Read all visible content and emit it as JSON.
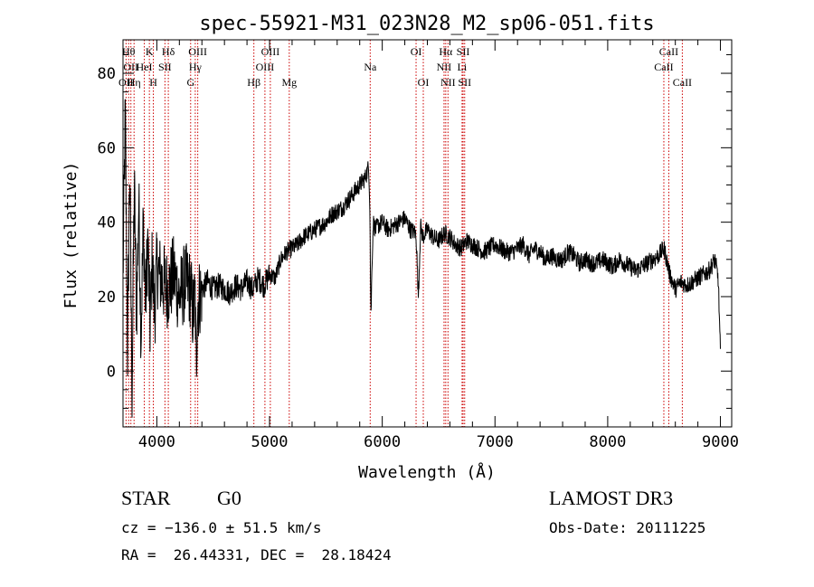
{
  "chart_data": {
    "type": "line",
    "title": "spec-55921-M31_023N28_M2_sp06-051.fits",
    "xlabel": "Wavelength (Å)",
    "ylabel": "Flux (relative)",
    "xlim": [
      3700,
      9100
    ],
    "ylim": [
      -15,
      89
    ],
    "xticks": [
      {
        "value": 4000,
        "label": "4000"
      },
      {
        "value": 5000,
        "label": "5000"
      },
      {
        "value": 6000,
        "label": "6000"
      },
      {
        "value": 7000,
        "label": "7000"
      },
      {
        "value": 8000,
        "label": "8000"
      },
      {
        "value": 9000,
        "label": "9000"
      }
    ],
    "yticks": [
      {
        "value": 0,
        "label": "0"
      },
      {
        "value": 20,
        "label": "20"
      },
      {
        "value": 40,
        "label": "40"
      },
      {
        "value": 60,
        "label": "60"
      },
      {
        "value": 80,
        "label": "80"
      }
    ],
    "lines": [
      {
        "wavelength": 3727,
        "label": "OII",
        "row": 2
      },
      {
        "wavelength": 3750,
        "label": "Hθ",
        "row": 0
      },
      {
        "wavelength": 3770,
        "label": "OII",
        "row": 1
      },
      {
        "wavelength": 3798,
        "label": "Hη",
        "row": 2
      },
      {
        "wavelength": 3889,
        "label": "HeI",
        "row": 1
      },
      {
        "wavelength": 3934,
        "label": "K",
        "row": 0
      },
      {
        "wavelength": 3969,
        "label": "H",
        "row": 2
      },
      {
        "wavelength": 4072,
        "label": "SII",
        "row": 1
      },
      {
        "wavelength": 4102,
        "label": "Hδ",
        "row": 0
      },
      {
        "wavelength": 4300,
        "label": "G",
        "row": 2
      },
      {
        "wavelength": 4341,
        "label": "Hγ",
        "row": 1
      },
      {
        "wavelength": 4363,
        "label": "OIII",
        "row": 0
      },
      {
        "wavelength": 4861,
        "label": "Hβ",
        "row": 2
      },
      {
        "wavelength": 4959,
        "label": "OIII",
        "row": 1
      },
      {
        "wavelength": 5007,
        "label": "OIII",
        "row": 0
      },
      {
        "wavelength": 5175,
        "label": "Mg",
        "row": 2
      },
      {
        "wavelength": 5893,
        "label": "Na",
        "row": 1
      },
      {
        "wavelength": 6300,
        "label": "OI",
        "row": 0
      },
      {
        "wavelength": 6364,
        "label": "OI",
        "row": 2
      },
      {
        "wavelength": 6548,
        "label": "NII",
        "row": 1
      },
      {
        "wavelength": 6563,
        "label": "Hα",
        "row": 0
      },
      {
        "wavelength": 6583,
        "label": "NII",
        "row": 2
      },
      {
        "wavelength": 6708,
        "label": "Li",
        "row": 1
      },
      {
        "wavelength": 6717,
        "label": "SII",
        "row": 0
      },
      {
        "wavelength": 6731,
        "label": "SII",
        "row": 2
      },
      {
        "wavelength": 8498,
        "label": "CaII",
        "row": 1
      },
      {
        "wavelength": 8542,
        "label": "CaII",
        "row": 0
      },
      {
        "wavelength": 8662,
        "label": "CaII",
        "row": 2
      }
    ],
    "spectrum": {
      "wavelength": [
        3700,
        3720,
        3740,
        3760,
        3780,
        3800,
        3820,
        3840,
        3860,
        3880,
        3900,
        3920,
        3940,
        3960,
        3980,
        4000,
        4050,
        4100,
        4150,
        4200,
        4250,
        4300,
        4320,
        4340,
        4350,
        4360,
        4380,
        4400,
        4450,
        4500,
        4550,
        4600,
        4650,
        4700,
        4750,
        4800,
        4850,
        4900,
        4950,
        5000,
        5050,
        5100,
        5150,
        5200,
        5250,
        5300,
        5350,
        5400,
        5450,
        5500,
        5550,
        5600,
        5650,
        5700,
        5750,
        5800,
        5850,
        5880,
        5890,
        5895,
        5900,
        5910,
        5920,
        5940,
        5960,
        6000,
        6050,
        6100,
        6150,
        6200,
        6250,
        6300,
        6320,
        6340,
        6360,
        6400,
        6450,
        6500,
        6550,
        6600,
        6650,
        6700,
        6750,
        6800,
        6850,
        6900,
        6950,
        7000,
        7050,
        7100,
        7150,
        7200,
        7250,
        7300,
        7350,
        7400,
        7450,
        7500,
        7550,
        7600,
        7650,
        7700,
        7750,
        7800,
        7850,
        7900,
        7950,
        8000,
        8050,
        8100,
        8150,
        8200,
        8250,
        8300,
        8350,
        8400,
        8450,
        8500,
        8550,
        8600,
        8650,
        8700,
        8750,
        8800,
        8850,
        8900,
        8950,
        8980,
        9000
      ],
      "flux": [
        25,
        70,
        5,
        55,
        -5,
        50,
        15,
        45,
        10,
        40,
        18,
        35,
        12,
        30,
        15,
        28,
        24,
        22,
        26,
        20,
        24,
        22,
        15,
        20,
        0,
        18,
        20,
        22,
        24,
        22,
        23,
        22,
        21,
        23,
        22,
        24,
        22,
        25,
        23,
        26,
        25,
        30,
        32,
        33,
        34,
        36,
        37,
        38,
        39,
        40,
        42,
        43,
        44,
        46,
        48,
        50,
        52,
        55,
        45,
        25,
        15,
        30,
        40,
        38,
        39,
        40,
        38,
        39,
        40,
        41,
        38,
        37,
        20,
        39,
        36,
        38,
        36,
        35,
        37,
        36,
        34,
        33,
        35,
        34,
        33,
        32,
        33,
        34,
        33,
        32,
        32,
        33,
        34,
        31,
        33,
        32,
        30,
        31,
        30,
        30,
        32,
        31,
        29,
        30,
        29,
        29,
        30,
        29,
        28,
        30,
        29,
        28,
        27,
        28,
        29,
        30,
        31,
        33,
        26,
        22,
        24,
        23,
        24,
        25,
        26,
        27,
        30,
        25,
        5
      ]
    }
  },
  "info": {
    "object_type": "STAR",
    "subclass": "G0",
    "survey": "LAMOST DR3",
    "redshift": "cz = −136.0 ± 51.5 km/s",
    "obs_date": "Obs-Date: 20111225",
    "coords": "RA =  26.44331, DEC =  28.18424"
  },
  "colors": {
    "axis": "#000000",
    "line_marker": "#cc0000",
    "spectrum": "#000000"
  }
}
